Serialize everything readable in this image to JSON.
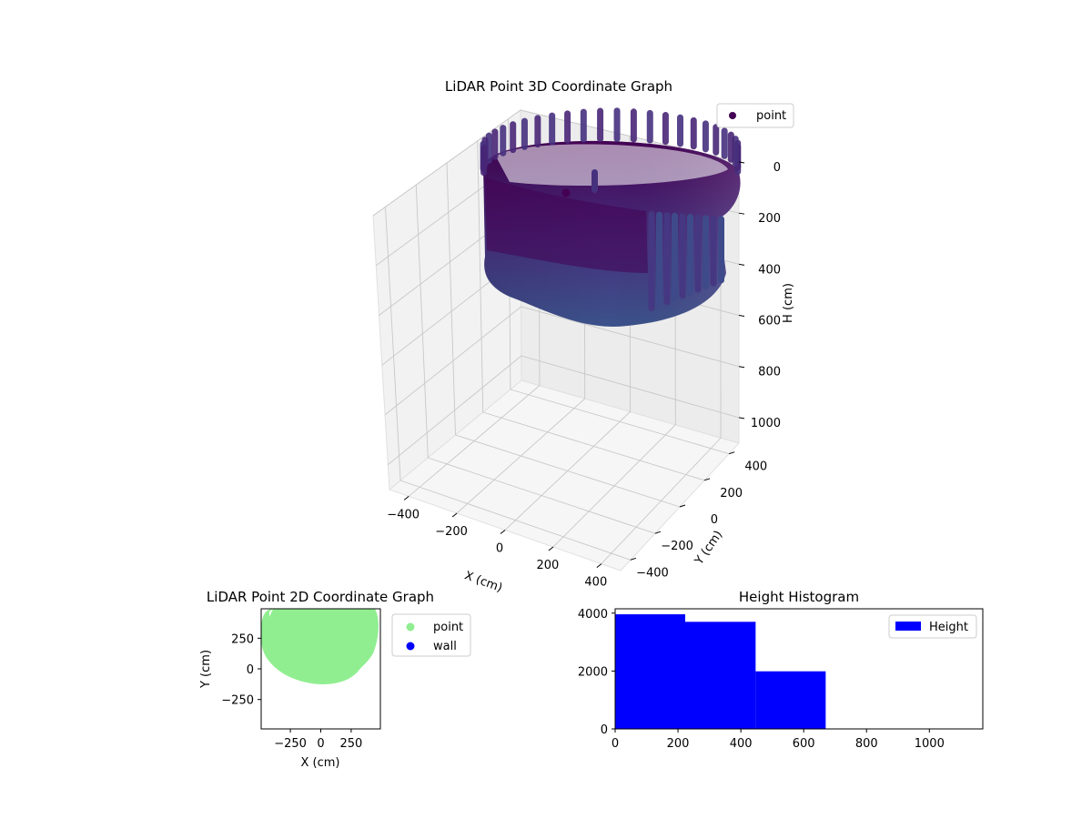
{
  "chart_data": [
    {
      "type": "scatter",
      "projection": "3d",
      "title": "LiDAR Point 3D Coordinate Graph",
      "xlabel": "X (cm)",
      "ylabel": "Y (cm)",
      "zlabel": "H (cm)",
      "x_ticks": [
        "−400",
        "−200",
        "0",
        "200",
        "400"
      ],
      "y_ticks": [
        "−400",
        "−200",
        "0",
        "200",
        "400"
      ],
      "z_ticks": [
        "0",
        "200",
        "400",
        "600",
        "800",
        "1000"
      ],
      "xlim": [
        -480,
        480
      ],
      "ylim": [
        -480,
        480
      ],
      "zlim": [
        0,
        1100
      ],
      "z_axis_inverted": true,
      "colormap": "viridis",
      "grid": true,
      "legend": {
        "position": "upper-right",
        "entries": [
          {
            "label": "point",
            "color": "#440154"
          }
        ]
      },
      "series": [
        {
          "name": "point",
          "shape": "cylindrical wall of points",
          "center_xy": [
            0,
            0
          ],
          "radius": 330,
          "h_range": [
            0,
            670
          ]
        }
      ]
    },
    {
      "type": "scatter",
      "title": "LiDAR Point 2D Coordinate Graph",
      "xlabel": "X (cm)",
      "ylabel": "Y (cm)",
      "x_ticks": [
        "−250",
        "0",
        "250"
      ],
      "y_ticks": [
        "250",
        "0",
        "−250"
      ],
      "xlim": [
        -490,
        490
      ],
      "ylim": [
        -490,
        490
      ],
      "legend": {
        "position": "outside-right",
        "entries": [
          {
            "label": "point",
            "color": "#90ee90"
          },
          {
            "label": "wall",
            "color": "#0000ff"
          }
        ]
      },
      "series": [
        {
          "name": "point",
          "color": "#90ee90",
          "region": "filled disc of points",
          "center_xy": [
            0,
            200
          ],
          "radius": 330
        },
        {
          "name": "wall",
          "color": "#0000ff",
          "points": []
        }
      ]
    },
    {
      "type": "bar",
      "subtype": "histogram",
      "title": "Height Histogram",
      "x_ticks": [
        "0",
        "200",
        "400",
        "600",
        "800",
        "1000"
      ],
      "y_ticks": [
        "0",
        "2000",
        "4000"
      ],
      "xlim": [
        0,
        1170
      ],
      "ylim": [
        0,
        4150
      ],
      "bin_edges": [
        0,
        223,
        447,
        670,
        893,
        1117
      ],
      "values": [
        3960,
        3700,
        1990,
        0,
        0
      ],
      "color": "#0000ff",
      "legend": {
        "position": "upper-right",
        "entries": [
          {
            "label": "Height",
            "color": "#0000ff"
          }
        ]
      }
    }
  ]
}
